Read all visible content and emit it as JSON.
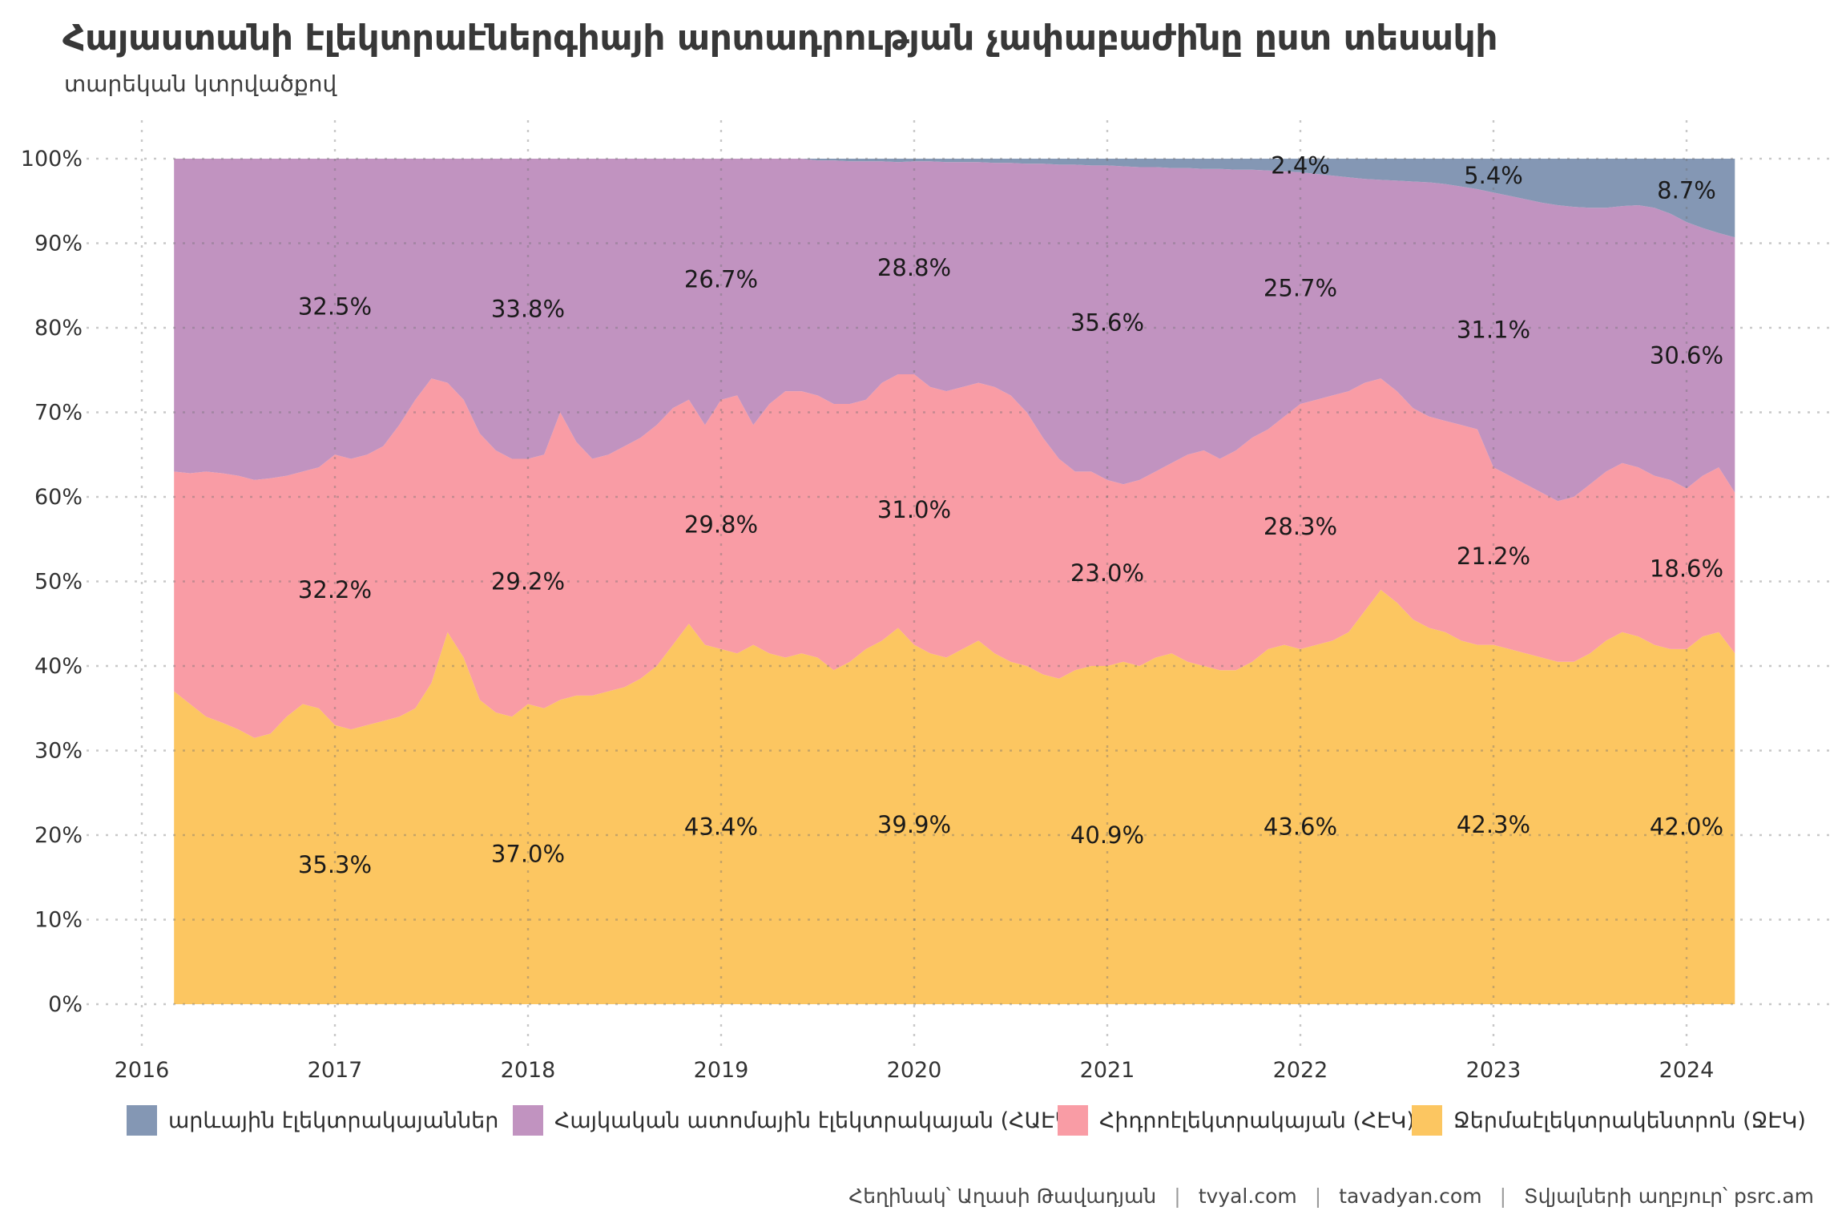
{
  "title": "Հայաստանի էլեկտրաէներգիայի արտադրության չափաբաժինը ըստ տեսակի",
  "subtitle": "տարեկան կտրվածքով",
  "colors": {
    "background": "#ffffff",
    "title_text": "#383838",
    "axis_text": "#333333",
    "label_text": "#1a1a1a",
    "gridline": "#787878",
    "solar": "#8497B4",
    "nuclear": "#C193C0",
    "hydro": "#F99CA5",
    "thermal": "#FCC661"
  },
  "legend": [
    {
      "label": "արևային էլեկտրակայաններ",
      "color": "#8497B4",
      "series": "solar"
    },
    {
      "label": "Հայկական ատոմային էլեկտրակայան (ՀԱԷԿ)",
      "color": "#C193C0",
      "series": "nuclear"
    },
    {
      "label": "Հիդրոէլեկտրակայան (ՀԷԿ)",
      "color": "#F99CA5",
      "series": "hydro"
    },
    {
      "label": "Ջերմաէլեկտրակենտրոն (ՋԷԿ)",
      "color": "#FCC661",
      "series": "thermal"
    }
  ],
  "footer": {
    "author": "Հեղինակ՝ Աղասի Թավադյան",
    "link1": "tvyal.com",
    "link2": "tavadyan.com",
    "source": "Տվյալների աղբյուր՝ psrc.am",
    "separator": "|"
  },
  "chart_data": {
    "type": "area",
    "stacked": true,
    "normalized_percent": true,
    "ylim": [
      0,
      100
    ],
    "x_start": 2016.1667,
    "months_per_step": 1,
    "x_ticks": [
      {
        "value": 2016,
        "label": "2016"
      },
      {
        "value": 2017,
        "label": "2017"
      },
      {
        "value": 2018,
        "label": "2018"
      },
      {
        "value": 2019,
        "label": "2019"
      },
      {
        "value": 2020,
        "label": "2020"
      },
      {
        "value": 2021,
        "label": "2021"
      },
      {
        "value": 2022,
        "label": "2022"
      },
      {
        "value": 2023,
        "label": "2023"
      },
      {
        "value": 2024,
        "label": "2024"
      }
    ],
    "y_ticks": [
      {
        "value": 0,
        "label": "0%"
      },
      {
        "value": 10,
        "label": "10%"
      },
      {
        "value": 20,
        "label": "20%"
      },
      {
        "value": 30,
        "label": "30%"
      },
      {
        "value": 40,
        "label": "40%"
      },
      {
        "value": 50,
        "label": "50%"
      },
      {
        "value": 60,
        "label": "60%"
      },
      {
        "value": 70,
        "label": "70%"
      },
      {
        "value": 80,
        "label": "80%"
      },
      {
        "value": 90,
        "label": "90%"
      },
      {
        "value": 100,
        "label": "100%"
      }
    ],
    "series": [
      {
        "id": "thermal",
        "name": "Ջերմաէլեկտրակենտրոն (ՋԷԿ)",
        "color": "#FCC661",
        "values": [
          37,
          35.5,
          34,
          33.3,
          32.5,
          31.5,
          32,
          34,
          35.5,
          35,
          33,
          32.5,
          33,
          33.5,
          34,
          35,
          38,
          44,
          41,
          36,
          34.5,
          34,
          35.5,
          35,
          36,
          36.5,
          36.5,
          37,
          37.5,
          38.5,
          40,
          42.5,
          45,
          42.5,
          42,
          41.5,
          42.5,
          41.5,
          41,
          41.5,
          41,
          39.5,
          40.5,
          42,
          43,
          44.5,
          42.5,
          41.5,
          41,
          42,
          43,
          41.5,
          40.5,
          40,
          39,
          38.5,
          39.5,
          40,
          40,
          40.5,
          40,
          41,
          41.5,
          40.5,
          40,
          39.5,
          39.5,
          40.5,
          42,
          42.5,
          42,
          42.5,
          43,
          44,
          46.5,
          49,
          47.5,
          45.5,
          44.5,
          44,
          43,
          42.5,
          42.5,
          42,
          41.5,
          41,
          40.5,
          40.5,
          41.5,
          43,
          44,
          43.5,
          42.5,
          42,
          42,
          43.5,
          44,
          41.5
        ]
      },
      {
        "id": "hydro",
        "name": "Հիդրոէլեկտրակայան (ՀԷԿ)",
        "color": "#F99CA5",
        "values": [
          26,
          27.3,
          29,
          29.5,
          30,
          30.5,
          30.2,
          28.5,
          27.5,
          28.5,
          32,
          32,
          32,
          32.5,
          34.5,
          36.5,
          36,
          29.5,
          30.5,
          31.5,
          31,
          30.5,
          29,
          30,
          34,
          30,
          28,
          28,
          28.5,
          28.5,
          28.5,
          28,
          26.5,
          26,
          29.5,
          30.5,
          26,
          29.5,
          31.5,
          31,
          31,
          31.5,
          30.5,
          29.5,
          30.5,
          30,
          32,
          31.5,
          31.5,
          31,
          30.5,
          31.5,
          31.5,
          30,
          28,
          26,
          23.5,
          23,
          22,
          21,
          22,
          22,
          22.5,
          24.5,
          25.5,
          25,
          26,
          26.5,
          26,
          27,
          29,
          29,
          29,
          28.5,
          27,
          25,
          25,
          25,
          25,
          25,
          25.5,
          25.5,
          21,
          20.5,
          20,
          19.5,
          19,
          19.5,
          20,
          20,
          20,
          20,
          20,
          20,
          19,
          19,
          19.5,
          19
        ]
      },
      {
        "id": "nuclear",
        "name": "Հայկական ատոմային էլեկտրակայան (ՀԱԷԿ)",
        "color": "#C193C0",
        "values": [
          37,
          37.2,
          37,
          37.2,
          37.5,
          38,
          37.8,
          37.5,
          37,
          36.5,
          35,
          35.5,
          35,
          34,
          31.5,
          28.5,
          26,
          26.5,
          28.5,
          32.5,
          34.5,
          35.5,
          35.5,
          35,
          30,
          33.5,
          35.5,
          35,
          34,
          33,
          31.5,
          29.5,
          28.5,
          31.5,
          28.5,
          28,
          31.5,
          29,
          27.5,
          27.5,
          27.8,
          28.8,
          28.7,
          28.2,
          26.2,
          25.1,
          25.2,
          26.7,
          27.1,
          26.6,
          26.1,
          26.5,
          27.5,
          29.4,
          32.4,
          34.8,
          36.3,
          36.2,
          37.2,
          37.6,
          37,
          36,
          34.9,
          33.9,
          33.3,
          34.3,
          33.2,
          31.7,
          30.6,
          29,
          27.4,
          26.7,
          26,
          25.3,
          24.1,
          23.5,
          24.9,
          26.8,
          27.7,
          28,
          28.2,
          28.4,
          32.5,
          33.1,
          33.7,
          34.3,
          35,
          34.3,
          32.7,
          31.2,
          30.4,
          31,
          31.7,
          31.5,
          31.5,
          29.3,
          27.7,
          30.2
        ]
      },
      {
        "id": "solar",
        "name": "արևային էլեկտրակայաններ",
        "color": "#8497B4",
        "values": [
          0,
          0,
          0,
          0,
          0,
          0,
          0,
          0,
          0,
          0,
          0,
          0,
          0,
          0,
          0,
          0,
          0,
          0,
          0,
          0,
          0,
          0,
          0,
          0,
          0,
          0,
          0,
          0,
          0,
          0,
          0,
          0,
          0,
          0,
          0,
          0,
          0,
          0,
          0,
          0,
          0.2,
          0.2,
          0.3,
          0.3,
          0.3,
          0.4,
          0.3,
          0.3,
          0.4,
          0.4,
          0.4,
          0.5,
          0.5,
          0.6,
          0.6,
          0.7,
          0.7,
          0.8,
          0.8,
          0.9,
          1,
          1,
          1.1,
          1.1,
          1.2,
          1.2,
          1.3,
          1.3,
          1.4,
          1.5,
          1.6,
          1.8,
          2,
          2.2,
          2.4,
          2.5,
          2.6,
          2.7,
          2.8,
          3,
          3.3,
          3.6,
          4,
          4.4,
          4.8,
          5.2,
          5.5,
          5.7,
          5.8,
          5.8,
          5.6,
          5.5,
          5.8,
          6.5,
          7.5,
          8.2,
          8.8,
          9.3
        ]
      }
    ],
    "annual_labels": [
      {
        "year": 2017,
        "entries": [
          {
            "series": "nuclear",
            "text": "32.5%"
          },
          {
            "series": "hydro",
            "text": "32.2%"
          },
          {
            "series": "thermal",
            "text": "35.3%"
          }
        ]
      },
      {
        "year": 2018,
        "entries": [
          {
            "series": "nuclear",
            "text": "33.8%"
          },
          {
            "series": "hydro",
            "text": "29.2%"
          },
          {
            "series": "thermal",
            "text": "37.0%"
          }
        ]
      },
      {
        "year": 2019,
        "entries": [
          {
            "series": "nuclear",
            "text": "26.7%"
          },
          {
            "series": "hydro",
            "text": "29.8%"
          },
          {
            "series": "thermal",
            "text": "43.4%"
          }
        ]
      },
      {
        "year": 2020,
        "entries": [
          {
            "series": "nuclear",
            "text": "28.8%"
          },
          {
            "series": "hydro",
            "text": "31.0%"
          },
          {
            "series": "thermal",
            "text": "39.9%"
          }
        ]
      },
      {
        "year": 2021,
        "entries": [
          {
            "series": "nuclear",
            "text": "35.6%"
          },
          {
            "series": "hydro",
            "text": "23.0%"
          },
          {
            "series": "thermal",
            "text": "40.9%"
          }
        ]
      },
      {
        "year": 2022,
        "entries": [
          {
            "series": "solar",
            "text": "2.4%"
          },
          {
            "series": "nuclear",
            "text": "25.7%"
          },
          {
            "series": "hydro",
            "text": "28.3%"
          },
          {
            "series": "thermal",
            "text": "43.6%"
          }
        ]
      },
      {
        "year": 2023,
        "entries": [
          {
            "series": "solar",
            "text": "5.4%"
          },
          {
            "series": "nuclear",
            "text": "31.1%"
          },
          {
            "series": "hydro",
            "text": "21.2%"
          },
          {
            "series": "thermal",
            "text": "42.3%"
          }
        ]
      },
      {
        "year": 2024,
        "entries": [
          {
            "series": "solar",
            "text": "8.7%"
          },
          {
            "series": "nuclear",
            "text": "30.6%"
          },
          {
            "series": "hydro",
            "text": "18.6%"
          },
          {
            "series": "thermal",
            "text": "42.0%"
          }
        ]
      }
    ]
  }
}
